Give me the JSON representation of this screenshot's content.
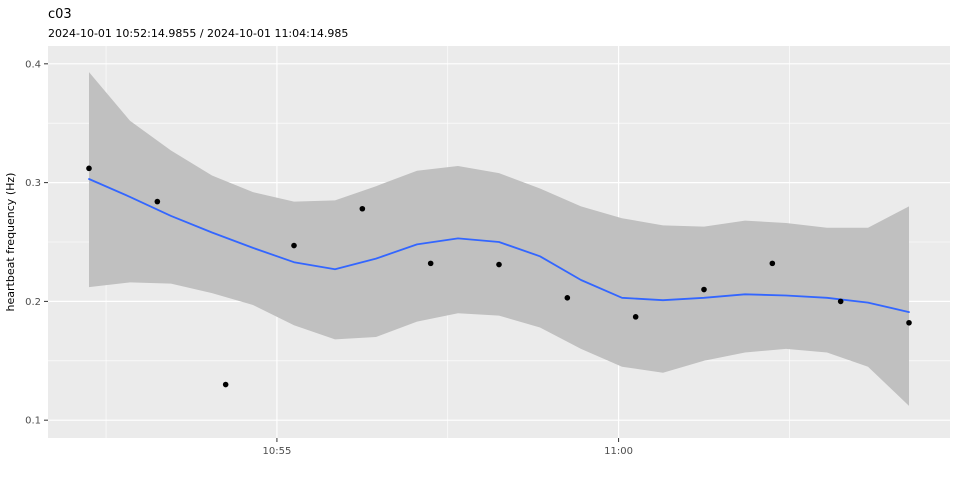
{
  "chart_data": {
    "type": "scatter",
    "title": "c03",
    "subtitle": "2024-10-01 10:52:14.9855  /  2024-10-01 11:04:14.985",
    "xlabel": "",
    "ylabel": "heartbeat frequency (Hz)",
    "ylim": [
      0.1,
      0.4
    ],
    "x_range_seconds": [
      0,
      720
    ],
    "x_start_time": "2024-10-01 10:52:14.9855",
    "x_end_time": "2024-10-01 11:04:14.985",
    "grid": "on",
    "legend": "none",
    "y_ticks": [
      0.1,
      0.2,
      0.3,
      0.4
    ],
    "y_tick_labels": [
      "0.1",
      "0.2",
      "0.3",
      "0.4"
    ],
    "y_minor_ticks": [
      0.15,
      0.25,
      0.35
    ],
    "x_ticks": [
      165,
      465
    ],
    "x_tick_labels": [
      "10:55",
      "11:00"
    ],
    "x_minor_ticks": [
      15,
      315,
      615
    ],
    "points": {
      "t_seconds": [
        0,
        60,
        120,
        180,
        240,
        300,
        360,
        420,
        480,
        540,
        600,
        660,
        720
      ],
      "time_labels": [
        "10:52:15",
        "10:53:15",
        "10:54:15",
        "10:55:15",
        "10:56:15",
        "10:57:15",
        "10:58:15",
        "10:59:15",
        "11:00:15",
        "11:01:15",
        "11:02:15",
        "11:03:15",
        "11:04:15"
      ],
      "values": [
        0.312,
        0.284,
        0.13,
        0.247,
        0.278,
        0.232,
        0.231,
        0.203,
        0.187,
        0.21,
        0.232,
        0.2,
        0.182
      ]
    },
    "smooth_line": {
      "t_seconds": [
        0,
        36,
        72,
        108,
        144,
        180,
        216,
        252,
        288,
        324,
        360,
        396,
        432,
        468,
        504,
        540,
        576,
        612,
        648,
        684,
        720
      ],
      "values": [
        0.303,
        0.288,
        0.272,
        0.258,
        0.245,
        0.233,
        0.227,
        0.236,
        0.248,
        0.253,
        0.25,
        0.238,
        0.218,
        0.203,
        0.201,
        0.203,
        0.206,
        0.205,
        0.203,
        0.199,
        0.191
      ]
    },
    "confidence_ribbon": {
      "t_seconds": [
        0,
        36,
        72,
        108,
        144,
        180,
        216,
        252,
        288,
        324,
        360,
        396,
        432,
        468,
        504,
        540,
        576,
        612,
        648,
        684,
        720
      ],
      "upper": [
        0.393,
        0.352,
        0.327,
        0.306,
        0.292,
        0.284,
        0.285,
        0.297,
        0.31,
        0.314,
        0.308,
        0.295,
        0.28,
        0.27,
        0.264,
        0.263,
        0.268,
        0.266,
        0.262,
        0.262,
        0.28
      ],
      "lower": [
        0.212,
        0.216,
        0.215,
        0.207,
        0.197,
        0.18,
        0.168,
        0.17,
        0.183,
        0.19,
        0.188,
        0.178,
        0.16,
        0.145,
        0.14,
        0.15,
        0.157,
        0.16,
        0.157,
        0.145,
        0.112
      ]
    },
    "colors": {
      "panel_background": "#EBEBEB",
      "gridline": "#FFFFFF",
      "ribbon": "#C0C0C0",
      "smooth_line": "#3366FF",
      "point": "#000000",
      "axis_text": "#4D4D4D",
      "tick_mark": "#333333",
      "title_text": "#000000"
    }
  }
}
